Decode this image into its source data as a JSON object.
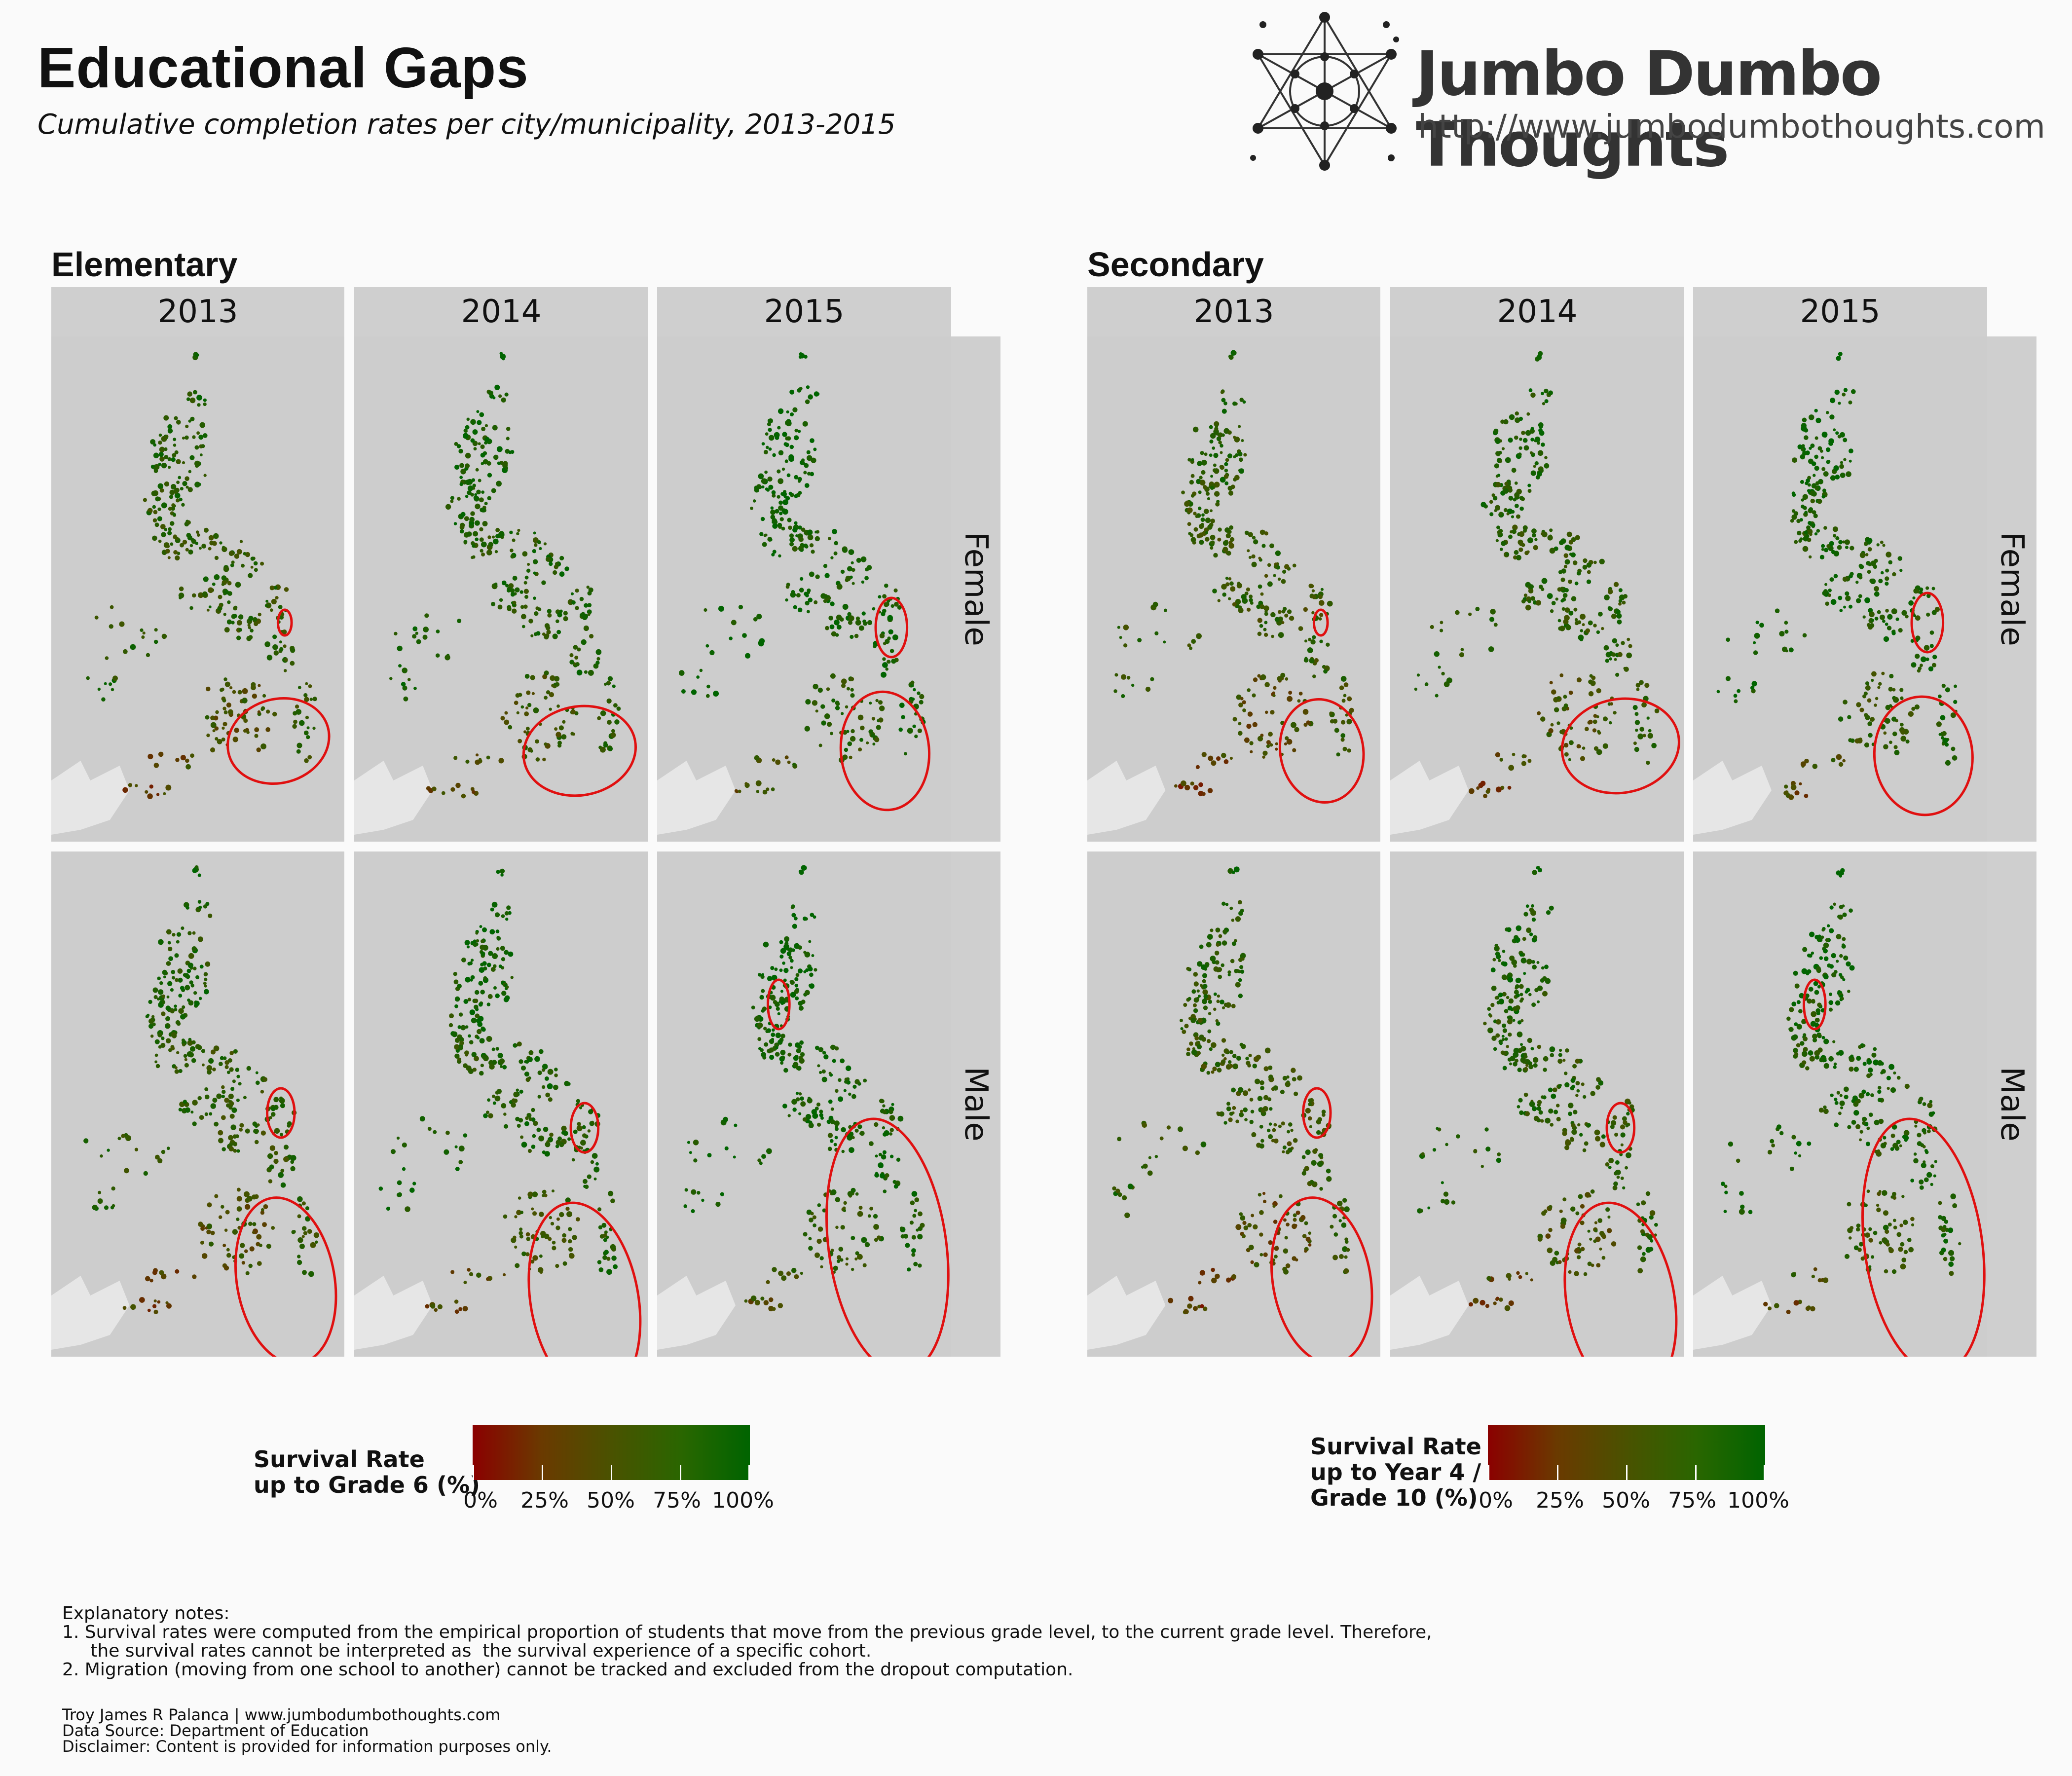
{
  "header": {
    "title": "Educational Gaps",
    "subtitle": "Cumulative completion rates per city/municipality, 2013-2015"
  },
  "brand": {
    "name": "Jumbo Dumbo Thoughts",
    "url": "http://www.jumbodumbothoughts.com",
    "icon": "network-logo"
  },
  "sections": [
    {
      "label": "Elementary",
      "years": [
        "2013",
        "2014",
        "2015"
      ],
      "rows": [
        "Female",
        "Male"
      ],
      "legend": {
        "title_lines": [
          "Survival Rate",
          "up to Grade 6 (%)"
        ],
        "ticks": [
          "0%",
          "25%",
          "50%",
          "75%",
          "100%"
        ]
      }
    },
    {
      "label": "Secondary",
      "years": [
        "2013",
        "2014",
        "2015"
      ],
      "rows": [
        "Female",
        "Male"
      ],
      "legend": {
        "title_lines": [
          "Survival Rate",
          "up to Year 4 /",
          "Grade 10 (%)"
        ],
        "ticks": [
          "0%",
          "25%",
          "50%",
          "75%",
          "100%"
        ]
      }
    }
  ],
  "colors": {
    "low": "#8b0000",
    "mid": "#4a5200",
    "high": "#006400",
    "highlight": "#e01010",
    "panel_bg": "#cdcdcd"
  },
  "notes": {
    "heading": "Explanatory notes:",
    "lines": [
      "1. Survival rates were computed from the empirical proportion of students that move from the previous grade level, to the current grade level. Therefore,",
      "     the survival rates cannot be interpreted as  the survival experience of a specific cohort.",
      "2. Migration (moving from one school to another) cannot be tracked and excluded from the dropout computation."
    ]
  },
  "credits": {
    "author": "Troy James R Palanca | www.jumbodumbothoughts.com",
    "source": "Data Source: Department of Education",
    "disclaimer": "Disclaimer: Content is provided for information purposes only."
  }
}
